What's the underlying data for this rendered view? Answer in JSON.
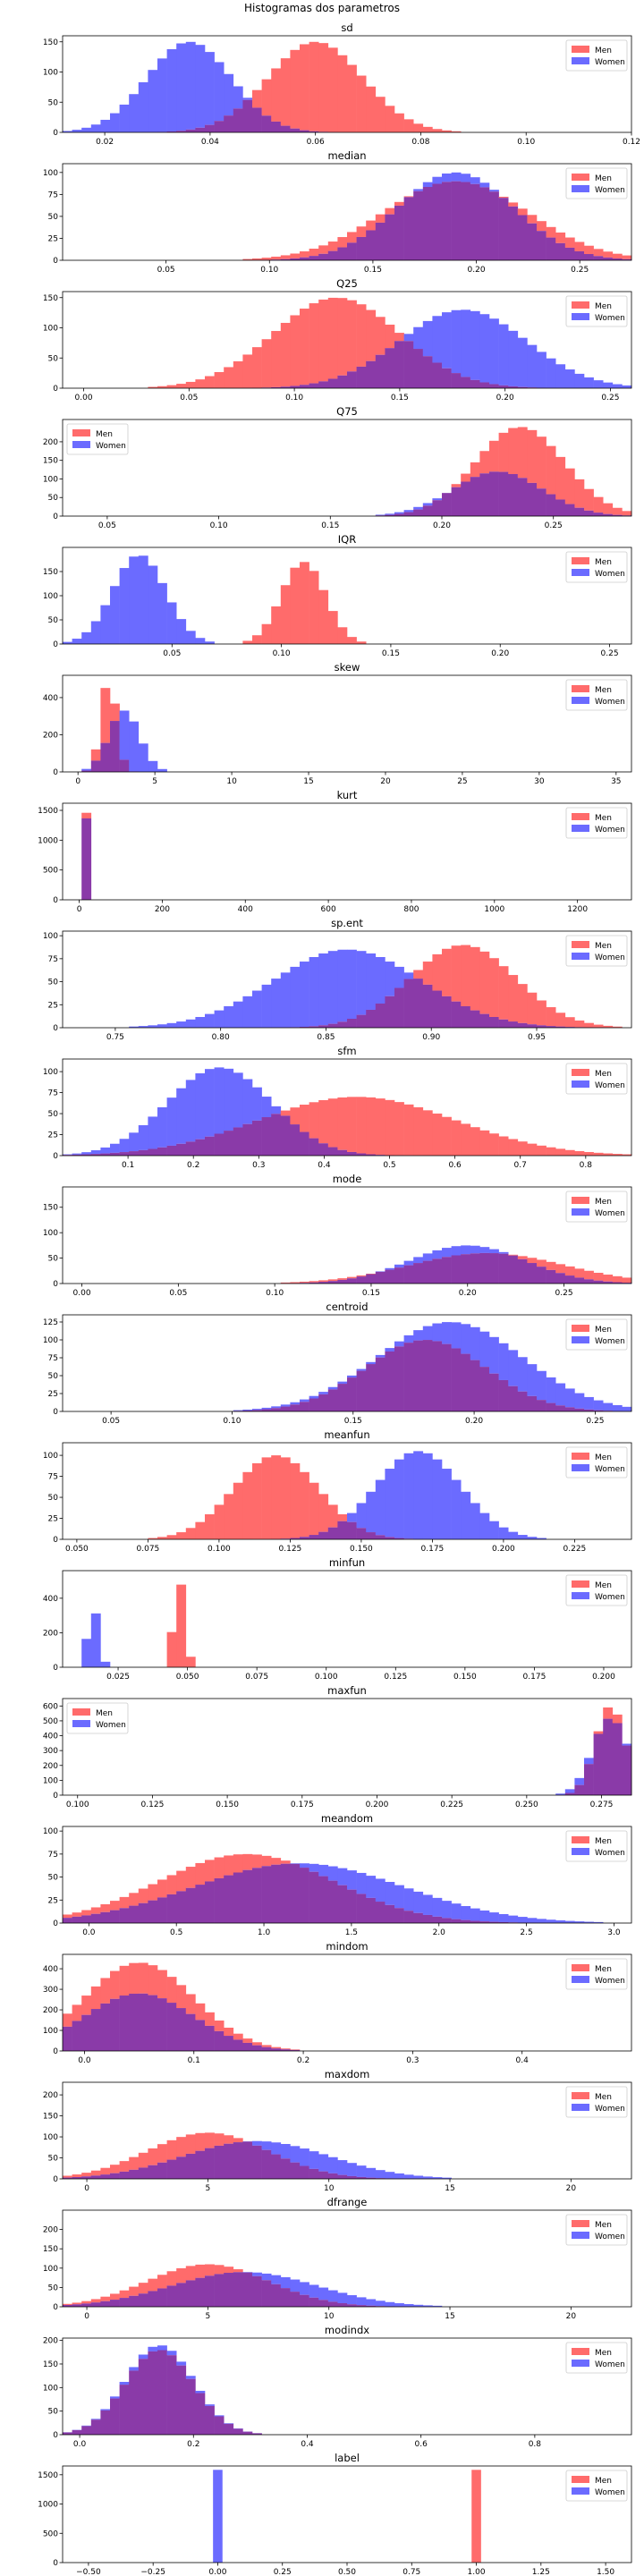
{
  "figure": {
    "title": "Histogramas dos parametros"
  },
  "colors": {
    "men": "#ff6b6b",
    "women": "#6b6bff",
    "overlap": "#8a3aa8"
  },
  "chart_data": [
    {
      "type": "histogram",
      "title": "sd",
      "legend": "top-right",
      "series": [
        {
          "name": "Men",
          "center": 0.06,
          "spread": 0.009,
          "peak": 150
        },
        {
          "name": "Women",
          "center": 0.036,
          "spread": 0.008,
          "peak": 150
        }
      ],
      "xlim": [
        0.012,
        0.12
      ],
      "ylim": [
        0,
        160
      ],
      "xticks": [
        0.02,
        0.04,
        0.06,
        0.08,
        0.1,
        0.12
      ],
      "xtick_labels": [
        "0.02",
        "0.04",
        "0.06",
        "0.08",
        "0.10",
        "0.12"
      ],
      "yticks": [
        0,
        50,
        100,
        150
      ]
    },
    {
      "type": "histogram",
      "title": "median",
      "legend": "top-right",
      "series": [
        {
          "name": "Men",
          "center": 0.19,
          "spread": 0.035,
          "peak": 90
        },
        {
          "name": "Women",
          "center": 0.19,
          "spread": 0.028,
          "peak": 100
        }
      ],
      "xlim": [
        0,
        0.275
      ],
      "ylim": [
        0,
        110
      ],
      "xticks": [
        0.05,
        0.1,
        0.15,
        0.2,
        0.25
      ],
      "xtick_labels": [
        "0.05",
        "0.10",
        "0.15",
        "0.20",
        "0.25"
      ],
      "yticks": [
        0,
        25,
        50,
        75,
        100
      ]
    },
    {
      "type": "histogram",
      "title": "Q25",
      "legend": "top-right",
      "series": [
        {
          "name": "Men",
          "center": 0.12,
          "spread": 0.03,
          "peak": 150
        },
        {
          "name": "Women",
          "center": 0.18,
          "spread": 0.03,
          "peak": 130
        }
      ],
      "xlim": [
        -0.01,
        0.26
      ],
      "ylim": [
        0,
        160
      ],
      "xticks": [
        0,
        0.05,
        0.1,
        0.15,
        0.2,
        0.25
      ],
      "xtick_labels": [
        "0.00",
        "0.05",
        "0.10",
        "0.15",
        "0.20",
        "0.25"
      ],
      "yticks": [
        0,
        50,
        100,
        150
      ]
    },
    {
      "type": "histogram",
      "title": "Q75",
      "legend": "top-left",
      "series": [
        {
          "name": "Men",
          "center": 0.235,
          "spread": 0.02,
          "peak": 240
        },
        {
          "name": "Women",
          "center": 0.225,
          "spread": 0.02,
          "peak": 120
        }
      ],
      "xlim": [
        0.03,
        0.285
      ],
      "ylim": [
        0,
        260
      ],
      "xticks": [
        0.05,
        0.1,
        0.15,
        0.2,
        0.25
      ],
      "xtick_labels": [
        "0.05",
        "0.10",
        "0.15",
        "0.20",
        "0.25"
      ],
      "yticks": [
        0,
        50,
        100,
        150,
        200
      ]
    },
    {
      "type": "histogram",
      "title": "IQR",
      "legend": "top-right",
      "series": [
        {
          "name": "Men",
          "center": 0.11,
          "spread": 0.01,
          "peak": 170
        },
        {
          "name": "Women",
          "center": 0.035,
          "spread": 0.012,
          "peak": 185
        }
      ],
      "xlim": [
        0,
        0.26
      ],
      "ylim": [
        0,
        200
      ],
      "xticks": [
        0.05,
        0.1,
        0.15,
        0.2,
        0.25
      ],
      "xtick_labels": [
        "0.05",
        "0.10",
        "0.15",
        "0.20",
        "0.25"
      ],
      "yticks": [
        0,
        50,
        100,
        150
      ]
    },
    {
      "type": "histogram",
      "title": "skew",
      "legend": "top-right",
      "series": [
        {
          "name": "Men",
          "center": 2,
          "spread": 0.5,
          "peak": 500
        },
        {
          "name": "Women",
          "center": 3,
          "spread": 1,
          "peak": 330
        }
      ],
      "xlim": [
        -1,
        36
      ],
      "ylim": [
        0,
        520
      ],
      "xticks": [
        0,
        5,
        10,
        15,
        20,
        25,
        30,
        35
      ],
      "xtick_labels": [
        "0",
        "5",
        "10",
        "15",
        "20",
        "25",
        "30",
        "35"
      ],
      "yticks": [
        0,
        200,
        400
      ]
    },
    {
      "type": "histogram",
      "title": "kurt",
      "legend": "top-right",
      "series": [
        {
          "name": "Men",
          "center": 15,
          "spread": 6,
          "peak": 1550
        },
        {
          "name": "Women",
          "center": 15,
          "spread": 6,
          "peak": 1450
        }
      ],
      "xlim": [
        -40,
        1330
      ],
      "ylim": [
        0,
        1620
      ],
      "xticks": [
        0,
        200,
        400,
        600,
        800,
        1000,
        1200
      ],
      "xtick_labels": [
        "0",
        "200",
        "400",
        "600",
        "800",
        "1000",
        "1200"
      ],
      "yticks": [
        0,
        500,
        1000,
        1500
      ]
    },
    {
      "type": "histogram",
      "title": "sp.ent",
      "legend": "top-right",
      "series": [
        {
          "name": "Men",
          "center": 0.915,
          "spread": 0.025,
          "peak": 90
        },
        {
          "name": "Women",
          "center": 0.86,
          "spread": 0.035,
          "peak": 85
        }
      ],
      "xlim": [
        0.725,
        0.995
      ],
      "ylim": [
        0,
        105
      ],
      "xticks": [
        0.75,
        0.8,
        0.85,
        0.9,
        0.95
      ],
      "xtick_labels": [
        "0.75",
        "0.80",
        "0.85",
        "0.90",
        "0.95"
      ],
      "yticks": [
        0,
        25,
        50,
        75,
        100
      ]
    },
    {
      "type": "histogram",
      "title": "sfm",
      "legend": "top-right",
      "series": [
        {
          "name": "Men",
          "center": 0.45,
          "spread": 0.15,
          "peak": 70
        },
        {
          "name": "Women",
          "center": 0.24,
          "spread": 0.08,
          "peak": 105
        }
      ],
      "xlim": [
        0,
        0.87
      ],
      "ylim": [
        0,
        115
      ],
      "xticks": [
        0.1,
        0.2,
        0.3,
        0.4,
        0.5,
        0.6,
        0.7,
        0.8
      ],
      "xtick_labels": [
        "0.1",
        "0.2",
        "0.3",
        "0.4",
        "0.5",
        "0.6",
        "0.7",
        "0.8"
      ],
      "yticks": [
        0,
        25,
        50,
        75,
        100
      ]
    },
    {
      "type": "histogram",
      "title": "mode",
      "legend": "top-right",
      "series": [
        {
          "name": "Men",
          "center": 0.21,
          "spread": 0.04,
          "peak": 60
        },
        {
          "name": "Women",
          "center": 0.2,
          "spread": 0.03,
          "peak": 75
        }
      ],
      "xlim": [
        -0.01,
        0.285
      ],
      "ylim": [
        0,
        190
      ],
      "xticks": [
        0,
        0.05,
        0.1,
        0.15,
        0.2,
        0.25
      ],
      "xtick_labels": [
        "0.00",
        "0.05",
        "0.10",
        "0.15",
        "0.20",
        "0.25"
      ],
      "yticks": [
        0,
        50,
        100,
        150
      ]
    },
    {
      "type": "histogram",
      "title": "centroid",
      "legend": "top-right",
      "series": [
        {
          "name": "Men",
          "center": 0.18,
          "spread": 0.025,
          "peak": 100
        },
        {
          "name": "Women",
          "center": 0.19,
          "spread": 0.03,
          "peak": 125
        }
      ],
      "xlim": [
        0.03,
        0.265
      ],
      "ylim": [
        0,
        135
      ],
      "xticks": [
        0.05,
        0.1,
        0.15,
        0.2,
        0.25
      ],
      "xtick_labels": [
        "0.05",
        "0.10",
        "0.15",
        "0.20",
        "0.25"
      ],
      "yticks": [
        0,
        25,
        50,
        75,
        100,
        125
      ]
    },
    {
      "type": "histogram",
      "title": "meanfun",
      "legend": "top-right",
      "series": [
        {
          "name": "Men",
          "center": 0.12,
          "spread": 0.015,
          "peak": 100
        },
        {
          "name": "Women",
          "center": 0.17,
          "spread": 0.015,
          "peak": 105
        }
      ],
      "xlim": [
        0.045,
        0.245
      ],
      "ylim": [
        0,
        115
      ],
      "xticks": [
        0.05,
        0.075,
        0.1,
        0.125,
        0.15,
        0.175,
        0.2,
        0.225
      ],
      "xtick_labels": [
        "0.050",
        "0.075",
        "0.100",
        "0.125",
        "0.150",
        "0.175",
        "0.200",
        "0.225"
      ],
      "yticks": [
        0,
        25,
        50,
        75,
        100
      ]
    },
    {
      "type": "histogram",
      "title": "minfun",
      "legend": "top-right",
      "series": [
        {
          "name": "Men",
          "center": 0.047,
          "spread": 0.002,
          "peak": 510
        },
        {
          "name": "Women",
          "center": 0.016,
          "spread": 0.002,
          "peak": 350
        }
      ],
      "xlim": [
        0.005,
        0.21
      ],
      "ylim": [
        0,
        560
      ],
      "xticks": [
        0.025,
        0.05,
        0.075,
        0.1,
        0.125,
        0.15,
        0.175,
        0.2
      ],
      "xtick_labels": [
        "0.025",
        "0.050",
        "0.075",
        "0.100",
        "0.125",
        "0.150",
        "0.175",
        "0.200"
      ],
      "yticks": [
        0,
        200,
        400
      ]
    },
    {
      "type": "histogram",
      "title": "maxfun",
      "legend": "top-left",
      "series": [
        {
          "name": "Men",
          "center": 0.278,
          "spread": 0.005,
          "peak": 600
        },
        {
          "name": "Women",
          "center": 0.278,
          "spread": 0.006,
          "peak": 520
        }
      ],
      "xlim": [
        0.095,
        0.285
      ],
      "ylim": [
        0,
        650
      ],
      "xticks": [
        0.1,
        0.125,
        0.15,
        0.175,
        0.2,
        0.225,
        0.25,
        0.275
      ],
      "xtick_labels": [
        "0.100",
        "0.125",
        "0.150",
        "0.175",
        "0.200",
        "0.225",
        "0.250",
        "0.275"
      ],
      "yticks": [
        0,
        100,
        200,
        300,
        400,
        500,
        600
      ]
    },
    {
      "type": "histogram",
      "title": "meandom",
      "legend": "top-right",
      "series": [
        {
          "name": "Men",
          "center": 0.9,
          "spread": 0.5,
          "peak": 75
        },
        {
          "name": "Women",
          "center": 1.2,
          "spread": 0.6,
          "peak": 65
        }
      ],
      "xlim": [
        -0.15,
        3.1
      ],
      "ylim": [
        0,
        105
      ],
      "xticks": [
        0,
        0.5,
        1,
        1.5,
        2,
        2.5,
        3
      ],
      "xtick_labels": [
        "0.0",
        "0.5",
        "1.0",
        "1.5",
        "2.0",
        "2.5",
        "3.0"
      ],
      "yticks": [
        0,
        25,
        50,
        75,
        100
      ]
    },
    {
      "type": "histogram",
      "title": "mindom",
      "legend": "top-right",
      "series": [
        {
          "name": "Men",
          "center": 0.05,
          "spread": 0.05,
          "peak": 430
        },
        {
          "name": "Women",
          "center": 0.05,
          "spread": 0.05,
          "peak": 280
        }
      ],
      "xlim": [
        -0.02,
        0.5
      ],
      "ylim": [
        0,
        470
      ],
      "xticks": [
        0,
        0.1,
        0.2,
        0.3,
        0.4
      ],
      "xtick_labels": [
        "0.0",
        "0.1",
        "0.2",
        "0.3",
        "0.4"
      ],
      "yticks": [
        0,
        100,
        200,
        300,
        400
      ]
    },
    {
      "type": "histogram",
      "title": "maxdom",
      "legend": "top-right",
      "series": [
        {
          "name": "Men",
          "center": 5,
          "spread": 2.5,
          "peak": 110
        },
        {
          "name": "Women",
          "center": 7,
          "spread": 3,
          "peak": 90
        }
      ],
      "xlim": [
        -1,
        22.5
      ],
      "ylim": [
        0,
        230
      ],
      "xticks": [
        0,
        5,
        10,
        15,
        20
      ],
      "xtick_labels": [
        "0",
        "5",
        "10",
        "15",
        "20"
      ],
      "yticks": [
        0,
        50,
        100,
        150,
        200
      ]
    },
    {
      "type": "histogram",
      "title": "dfrange",
      "legend": "top-right",
      "series": [
        {
          "name": "Men",
          "center": 5,
          "spread": 2.5,
          "peak": 110
        },
        {
          "name": "Women",
          "center": 6.5,
          "spread": 3,
          "peak": 90
        }
      ],
      "xlim": [
        -1,
        22.5
      ],
      "ylim": [
        0,
        250
      ],
      "xticks": [
        0,
        5,
        10,
        15,
        20
      ],
      "xtick_labels": [
        "0",
        "5",
        "10",
        "15",
        "20"
      ],
      "yticks": [
        0,
        50,
        100,
        150,
        200
      ]
    },
    {
      "type": "histogram",
      "title": "modindx",
      "legend": "top-right",
      "series": [
        {
          "name": "Men",
          "center": 0.14,
          "spread": 0.06,
          "peak": 180
        },
        {
          "name": "Women",
          "center": 0.14,
          "spread": 0.06,
          "peak": 190
        }
      ],
      "xlim": [
        -0.03,
        0.97
      ],
      "ylim": [
        0,
        205
      ],
      "xticks": [
        0,
        0.2,
        0.4,
        0.6,
        0.8
      ],
      "xtick_labels": [
        "0.0",
        "0.2",
        "0.4",
        "0.6",
        "0.8"
      ],
      "yticks": [
        0,
        50,
        100,
        150,
        200
      ]
    },
    {
      "type": "bar",
      "title": "label",
      "legend": "top-right",
      "series": [
        {
          "name": "Men",
          "x": [
            1
          ],
          "values": [
            1584
          ]
        },
        {
          "name": "Women",
          "x": [
            0
          ],
          "values": [
            1584
          ]
        }
      ],
      "xlim": [
        -0.6,
        1.6
      ],
      "ylim": [
        0,
        1650
      ],
      "xticks": [
        -0.5,
        -0.25,
        0,
        0.25,
        0.5,
        0.75,
        1,
        1.25,
        1.5
      ],
      "xtick_labels": [
        "−0.50",
        "−0.25",
        "0.00",
        "0.25",
        "0.50",
        "0.75",
        "1.00",
        "1.25",
        "1.50"
      ],
      "yticks": [
        0,
        500,
        1000,
        1500
      ]
    }
  ]
}
